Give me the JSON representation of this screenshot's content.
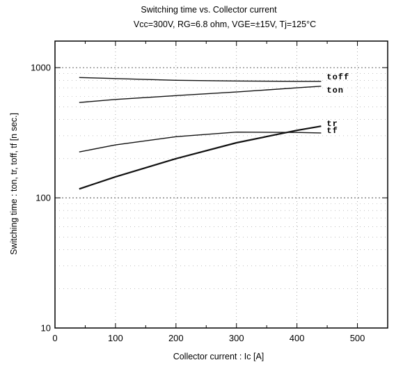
{
  "chart_data": {
    "type": "line",
    "title": "Switching time  vs. Collector current",
    "subtitle": "Vcc=300V, RG=6.8 ohm, VGE=±15V, Tj=125°C",
    "xlabel": "Collector  current  :  Ic [A]",
    "ylabel": "Switching time  :  ton,  tr,  toff,  tf  [n sec.]",
    "xlim": [
      0,
      550
    ],
    "ylim": [
      10,
      1600
    ],
    "yscale": "log",
    "grid": true,
    "x_ticks": [
      "0",
      "100",
      "200",
      "300",
      "400",
      "500"
    ],
    "y_ticks": [
      "10",
      "100",
      "1000"
    ],
    "series": [
      {
        "name": "toff",
        "x": [
          40,
          100,
          200,
          300,
          400,
          440
        ],
        "values": [
          840,
          825,
          800,
          790,
          785,
          785
        ]
      },
      {
        "name": "ton",
        "x": [
          40,
          100,
          200,
          300,
          400,
          440
        ],
        "values": [
          540,
          570,
          610,
          650,
          700,
          720
        ]
      },
      {
        "name": "tr",
        "x": [
          40,
          100,
          200,
          300,
          400,
          440
        ],
        "values": [
          225,
          255,
          295,
          320,
          318,
          315
        ]
      },
      {
        "name": "tf",
        "x": [
          40,
          100,
          200,
          300,
          400,
          440
        ],
        "values": [
          117,
          145,
          200,
          265,
          330,
          355
        ]
      }
    ]
  }
}
